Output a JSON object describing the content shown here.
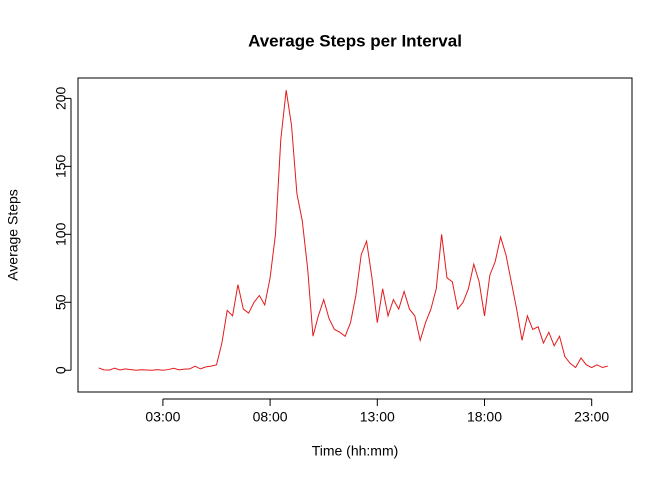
{
  "chart_data": {
    "type": "line",
    "title": "Average Steps per Interval",
    "x_label": "Time (hh:mm)",
    "y_label": "Average Steps",
    "x": [
      0,
      0.25,
      0.5,
      0.75,
      1,
      1.25,
      1.5,
      1.75,
      2,
      2.25,
      2.5,
      2.75,
      3,
      3.25,
      3.5,
      3.75,
      4,
      4.25,
      4.5,
      4.75,
      5,
      5.25,
      5.5,
      5.75,
      6,
      6.25,
      6.5,
      6.75,
      7,
      7.25,
      7.5,
      7.75,
      8,
      8.25,
      8.5,
      8.75,
      9,
      9.25,
      9.5,
      9.75,
      10,
      10.25,
      10.5,
      10.75,
      11,
      11.25,
      11.5,
      11.75,
      12,
      12.25,
      12.5,
      12.75,
      13,
      13.25,
      13.5,
      13.75,
      14,
      14.25,
      14.5,
      14.75,
      15,
      15.25,
      15.5,
      15.75,
      16,
      16.25,
      16.5,
      16.75,
      17,
      17.25,
      17.5,
      17.75,
      18,
      18.25,
      18.5,
      18.75,
      19,
      19.25,
      19.5,
      19.75,
      20,
      20.25,
      20.5,
      20.75,
      21,
      21.25,
      21.5,
      21.75,
      22,
      22.25,
      22.5,
      22.75,
      23,
      23.25,
      23.5,
      23.75
    ],
    "series": [
      {
        "name": "Average Steps",
        "color": "#e41a1c",
        "values": [
          1.7,
          0.3,
          0.1,
          1.5,
          0.2,
          1,
          0.5,
          0,
          0.4,
          0.2,
          0,
          0.5,
          0,
          0.5,
          1.5,
          0.3,
          0.8,
          1,
          3,
          1,
          2.5,
          3,
          4,
          20,
          44,
          40,
          63,
          45,
          42,
          50,
          55,
          48,
          68,
          100,
          170,
          206,
          180,
          130,
          110,
          75,
          25,
          40,
          52,
          38,
          30,
          28,
          25,
          35,
          55,
          85,
          95,
          68,
          35,
          60,
          40,
          52,
          45,
          58,
          45,
          40,
          22,
          35,
          45,
          60,
          100,
          68,
          65,
          45,
          50,
          60,
          78,
          65,
          40,
          70,
          80,
          98,
          85,
          65,
          45,
          22,
          40,
          30,
          32,
          20,
          28,
          18,
          25,
          10,
          5,
          2,
          9,
          4,
          2,
          4,
          2,
          3
        ]
      }
    ],
    "xlim": [
      -0.96,
      24.88
    ],
    "xticks": [
      {
        "value": 3,
        "label": "03:00"
      },
      {
        "value": 8,
        "label": "08:00"
      },
      {
        "value": 13,
        "label": "13:00"
      },
      {
        "value": 18,
        "label": "18:00"
      },
      {
        "value": 23,
        "label": "23:00"
      }
    ],
    "ylim": [
      -16,
      215
    ],
    "yticks": [
      0,
      50,
      100,
      150,
      200
    ]
  }
}
